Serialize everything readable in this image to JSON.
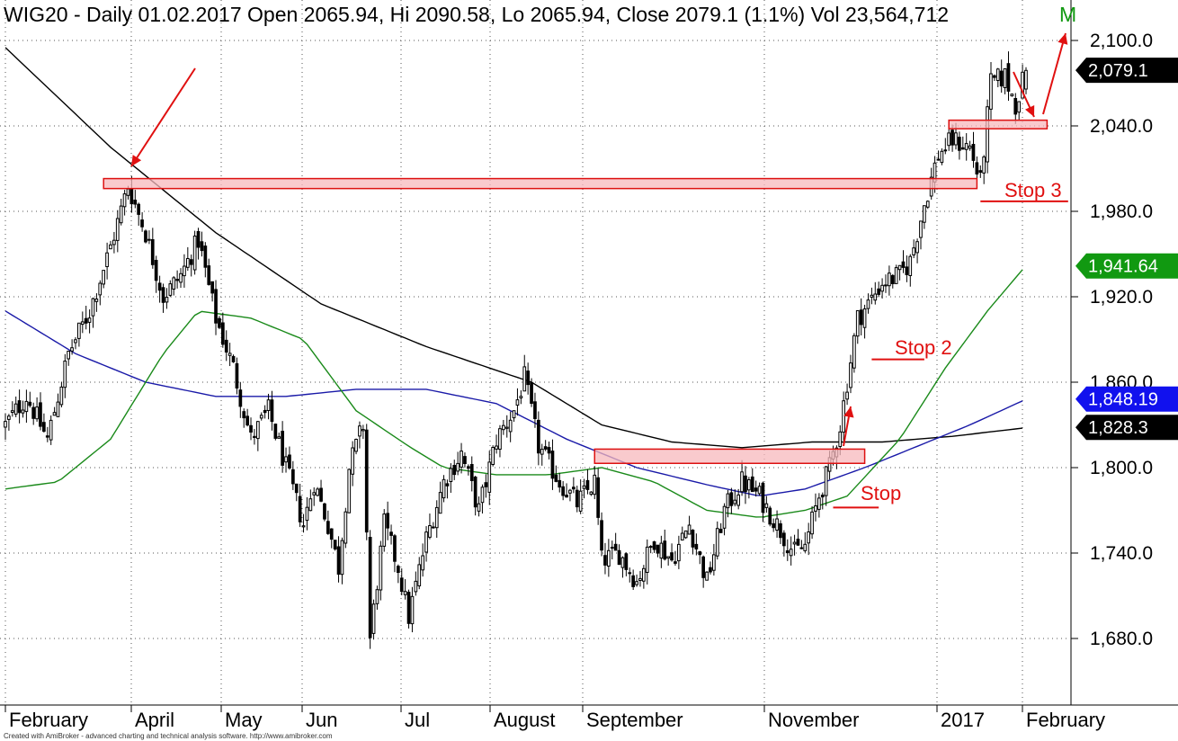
{
  "header": {
    "title": "WIG20 - Daily 01.02.2017 Open 2065.94, Hi 2090.58, Lo 2065.94, Close 2079.1 (1.1%) Vol 23,564,712",
    "overflow_char": "M"
  },
  "credit": "Created with AmiBroker - advanced charting and technical analysis software. http://www.amibroker.com",
  "colors": {
    "candle": "#000000",
    "ma_long": "#000000",
    "ma_mid": "#1a1aa8",
    "ma_short": "#1a8a1a",
    "zone_fill": "#f7b8bc",
    "zone_stroke": "#dd1111",
    "annotation": "#e01010",
    "grid": "#555555"
  },
  "price_tags": [
    {
      "label": "2,079.1",
      "value": 2079.1,
      "bg": "#000000",
      "fg": "#ffffff"
    },
    {
      "label": "1,941.64",
      "value": 1941.64,
      "bg": "#119911",
      "fg": "#ffffff"
    },
    {
      "label": "1,848.19",
      "value": 1848.19,
      "bg": "#1111ee",
      "fg": "#ffffff"
    },
    {
      "label": "1,828.3",
      "value": 1828.3,
      "bg": "#000000",
      "fg": "#ffffff"
    }
  ],
  "annotations": {
    "stop1": "Stop",
    "stop2": "Stop 2",
    "stop3": "Stop 3"
  },
  "chart_data": {
    "type": "candlestick",
    "title": "WIG20 - Daily 01.02.2017",
    "ylim": [
      1630,
      2110
    ],
    "yticks": [
      1680,
      1740,
      1800,
      1860,
      1920,
      1980,
      2040,
      2100
    ],
    "ytick_labels": [
      "1,680.0",
      "1,740.0",
      "1,800.0",
      "1,860.0",
      "1,920.0",
      "1,980.0",
      "2,040.0",
      "2,100.0"
    ],
    "x_labels": [
      "February",
      "April",
      "May",
      "Jun",
      "Jul",
      "August",
      "September",
      "November",
      "2017",
      "February"
    ],
    "grid": true,
    "series": [
      {
        "name": "Close",
        "anchors": [
          [
            0,
            1830
          ],
          [
            6,
            1850
          ],
          [
            12,
            1820
          ],
          [
            18,
            1880
          ],
          [
            24,
            1910
          ],
          [
            30,
            1955
          ],
          [
            35,
            1998
          ],
          [
            40,
            1965
          ],
          [
            45,
            1920
          ],
          [
            50,
            1935
          ],
          [
            55,
            1960
          ],
          [
            60,
            1905
          ],
          [
            65,
            1870
          ],
          [
            70,
            1820
          ],
          [
            75,
            1840
          ],
          [
            80,
            1800
          ],
          [
            85,
            1760
          ],
          [
            88,
            1790
          ],
          [
            92,
            1760
          ],
          [
            95,
            1730
          ],
          [
            98,
            1800
          ],
          [
            102,
            1830
          ],
          [
            104,
            1680
          ],
          [
            108,
            1760
          ],
          [
            112,
            1730
          ],
          [
            115,
            1695
          ],
          [
            120,
            1750
          ],
          [
            125,
            1790
          ],
          [
            130,
            1810
          ],
          [
            135,
            1770
          ],
          [
            140,
            1820
          ],
          [
            145,
            1840
          ],
          [
            148,
            1863
          ],
          [
            152,
            1815
          ],
          [
            158,
            1790
          ],
          [
            163,
            1775
          ],
          [
            168,
            1790
          ],
          [
            170,
            1735
          ],
          [
            175,
            1740
          ],
          [
            180,
            1720
          ],
          [
            185,
            1750
          ],
          [
            190,
            1735
          ],
          [
            195,
            1760
          ],
          [
            200,
            1720
          ],
          [
            205,
            1770
          ],
          [
            210,
            1790
          ],
          [
            215,
            1780
          ],
          [
            220,
            1760
          ],
          [
            225,
            1740
          ],
          [
            228,
            1745
          ],
          [
            232,
            1780
          ],
          [
            235,
            1800
          ],
          [
            238,
            1830
          ],
          [
            240,
            1860
          ],
          [
            243,
            1905
          ],
          [
            246,
            1915
          ],
          [
            250,
            1930
          ],
          [
            255,
            1935
          ],
          [
            258,
            1945
          ],
          [
            262,
            1985
          ],
          [
            266,
            2020
          ],
          [
            270,
            2030
          ],
          [
            275,
            2025
          ],
          [
            278,
            2000
          ],
          [
            281,
            2070
          ],
          [
            285,
            2075
          ],
          [
            288,
            2055
          ],
          [
            291,
            2079
          ]
        ]
      },
      {
        "name": "MA long",
        "points": [
          [
            0,
            2095
          ],
          [
            30,
            2025
          ],
          [
            60,
            1965
          ],
          [
            90,
            1915
          ],
          [
            120,
            1885
          ],
          [
            150,
            1860
          ],
          [
            170,
            1830
          ],
          [
            190,
            1818
          ],
          [
            210,
            1814
          ],
          [
            230,
            1818
          ],
          [
            250,
            1818
          ],
          [
            270,
            1822
          ],
          [
            291,
            1828
          ]
        ]
      },
      {
        "name": "MA mid",
        "points": [
          [
            0,
            1910
          ],
          [
            20,
            1880
          ],
          [
            40,
            1860
          ],
          [
            60,
            1850
          ],
          [
            80,
            1850
          ],
          [
            100,
            1855
          ],
          [
            120,
            1855
          ],
          [
            140,
            1845
          ],
          [
            160,
            1820
          ],
          [
            180,
            1800
          ],
          [
            200,
            1788
          ],
          [
            215,
            1780
          ],
          [
            228,
            1785
          ],
          [
            245,
            1800
          ],
          [
            260,
            1815
          ],
          [
            275,
            1830
          ],
          [
            291,
            1848
          ]
        ]
      },
      {
        "name": "MA short",
        "points": [
          [
            0,
            1785
          ],
          [
            15,
            1790
          ],
          [
            30,
            1820
          ],
          [
            45,
            1880
          ],
          [
            55,
            1910
          ],
          [
            70,
            1905
          ],
          [
            85,
            1890
          ],
          [
            100,
            1840
          ],
          [
            115,
            1815
          ],
          [
            125,
            1800
          ],
          [
            140,
            1795
          ],
          [
            155,
            1795
          ],
          [
            170,
            1800
          ],
          [
            185,
            1790
          ],
          [
            200,
            1770
          ],
          [
            215,
            1765
          ],
          [
            228,
            1770
          ],
          [
            240,
            1780
          ],
          [
            255,
            1820
          ],
          [
            268,
            1870
          ],
          [
            280,
            1910
          ],
          [
            291,
            1942
          ]
        ]
      }
    ],
    "bars_count": 292,
    "resistance_zones": [
      {
        "from_bar": 28,
        "to_bar": 277,
        "low": 1996,
        "high": 2003
      },
      {
        "from_bar": 168,
        "to_bar": 245,
        "low": 1803,
        "high": 1813
      },
      {
        "from_bar": 269,
        "to_bar": 297,
        "low": 2038,
        "high": 2044
      }
    ],
    "stop_levels": [
      {
        "label": "Stop",
        "value": 1772,
        "from_bar": 236,
        "to_bar": 249
      },
      {
        "label": "Stop 2",
        "value": 1876,
        "from_bar": 247,
        "to_bar": 262
      },
      {
        "label": "Stop 3",
        "value": 1987,
        "from_bar": 278,
        "to_bar": 303
      }
    ]
  }
}
